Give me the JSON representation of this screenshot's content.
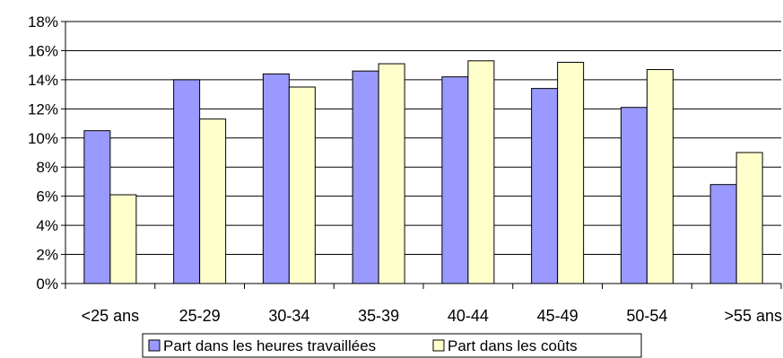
{
  "chart_data": {
    "type": "bar",
    "categories": [
      "<25 ans",
      "25-29",
      "30-34",
      "35-39",
      "40-44",
      "45-49",
      "50-54",
      ">55 ans"
    ],
    "series": [
      {
        "name": "Part dans les heures travaillées",
        "values": [
          10.5,
          14.0,
          14.4,
          14.6,
          14.2,
          13.4,
          12.1,
          6.8
        ],
        "color": "#9999ff"
      },
      {
        "name": "Part dans les coûts",
        "values": [
          6.1,
          11.3,
          13.5,
          15.1,
          15.3,
          15.2,
          14.7,
          9.0
        ],
        "color": "#ffffcc"
      }
    ],
    "yticks": [
      "0%",
      "2%",
      "4%",
      "6%",
      "8%",
      "10%",
      "12%",
      "14%",
      "16%",
      "18%"
    ],
    "ylim": [
      0,
      18
    ],
    "ytick_step": 2,
    "grid": true,
    "legend_position": "bottom"
  }
}
